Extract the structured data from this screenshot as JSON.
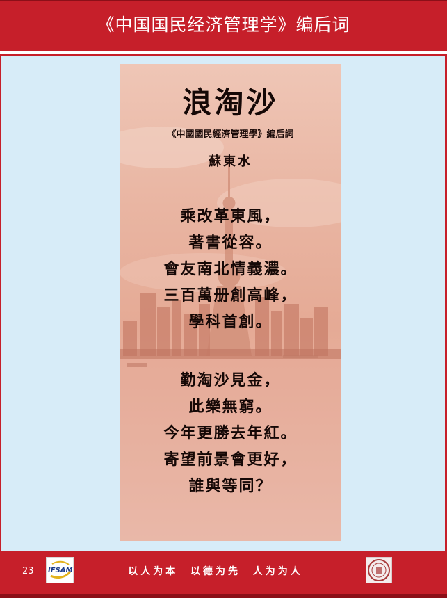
{
  "header": {
    "title": "《中国国民经济管理学》编后词"
  },
  "poem": {
    "title": "浪淘沙",
    "subtitle": "《中國國民經濟管理學》編后詞",
    "author": "蘇東水",
    "stanza1": [
      "乘改革東風，",
      "著書從容。",
      "會友南北情義濃。",
      "三百萬册創高峰，",
      "學科首創。"
    ],
    "stanza2": [
      "勤淘沙見金，",
      "此樂無窮。",
      "今年更勝去年紅。",
      "寄望前景會更好，",
      "誰與等同？"
    ]
  },
  "footer": {
    "page_number": "23",
    "ifsam_logo_text": "IFSAM",
    "motto": "以人为本  以德为先  人为为人"
  },
  "colors": {
    "brand_red": "#c61f2a",
    "page_background": "#d7ecf8",
    "panel_tint": "#e5aa95"
  }
}
